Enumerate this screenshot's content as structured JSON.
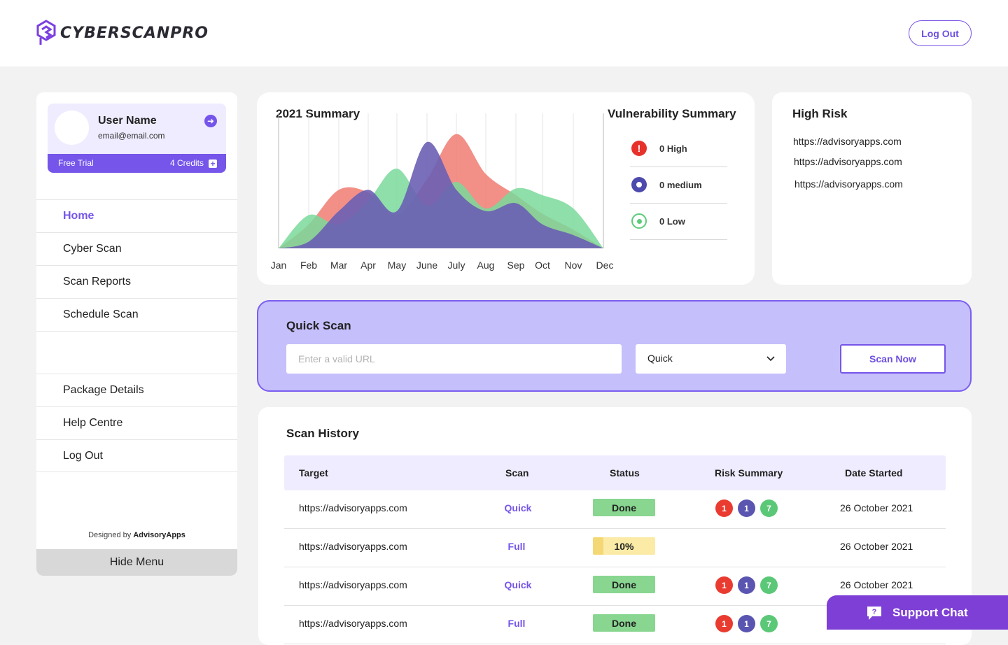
{
  "app": {
    "brand": "CYBERSCANPRO",
    "logout_label": "Log Out"
  },
  "profile": {
    "name": "User Name",
    "email": "email@email.com",
    "plan": "Free Trial",
    "credits": "4 Credits",
    "add_credits_icon": "plus-icon",
    "go_icon": "arrow-right-icon"
  },
  "nav": {
    "items": [
      "Home",
      "Cyber Scan",
      "Scan Reports",
      "Schedule Scan"
    ],
    "items_bottom": [
      "Package Details",
      "Help Centre",
      "Log Out"
    ],
    "active": "Home",
    "designed_prefix": "Designed by",
    "designed_brand": "AdvisoryApps",
    "hide_label": "Hide Menu"
  },
  "summary": {
    "title": "2021 Summary",
    "months": [
      "Jan",
      "Feb",
      "Mar",
      "Apr",
      "May",
      "June",
      "July",
      "Aug",
      "Sep",
      "Oct",
      "Nov",
      "Dec"
    ]
  },
  "chart_data": {
    "type": "area",
    "title": "2021 Summary",
    "x": [
      "Jan",
      "Feb",
      "Mar",
      "Apr",
      "May",
      "June",
      "July",
      "Aug",
      "Sep",
      "Oct",
      "Nov",
      "Dec"
    ],
    "series": [
      {
        "color": "#f07b72",
        "values": [
          0,
          18,
          44,
          42,
          25,
          52,
          86,
          56,
          40,
          26,
          14,
          0
        ]
      },
      {
        "color": "#7ad99a",
        "values": [
          0,
          25,
          18,
          36,
          60,
          32,
          50,
          30,
          45,
          40,
          30,
          0
        ]
      },
      {
        "color": "#6a5fb4",
        "values": [
          0,
          5,
          28,
          44,
          28,
          80,
          44,
          28,
          34,
          18,
          10,
          0
        ]
      }
    ],
    "grid": true,
    "ylim": [
      0,
      100
    ]
  },
  "vulnerability": {
    "title": "Vulnerability Summary",
    "items": [
      {
        "label": "0 High",
        "color": "#e7322c",
        "icon": "alert-icon"
      },
      {
        "label": "0 medium",
        "color": "#4d4aae",
        "icon": "dot-circle-icon"
      },
      {
        "label": "0 Low",
        "color": "#5ccb7a",
        "icon": "ring-icon"
      }
    ]
  },
  "high_risk": {
    "title": "High Risk",
    "links": [
      "https://advisoryapps.com",
      "https://advisoryapps.com",
      "https://advisoryapps.com"
    ]
  },
  "quick_scan": {
    "title": "Quick Scan",
    "url_placeholder": "Enter a valid URL",
    "type_value": "Quick",
    "button": "Scan Now"
  },
  "history": {
    "title": "Scan History",
    "columns": [
      "Target",
      "Scan",
      "Status",
      "Risk Summary",
      "Date Started"
    ],
    "rows": [
      {
        "target": "https://advisoryapps.com",
        "scan": "Quick",
        "status": "Done",
        "risk": [
          "1",
          "1",
          "7"
        ],
        "date": "26 October 2021"
      },
      {
        "target": "https://advisoryapps.com",
        "scan": "Full",
        "status": "10%",
        "progress": 0.1,
        "risk": [],
        "date": "26 October 2021"
      },
      {
        "target": "https://advisoryapps.com",
        "scan": "Quick",
        "status": "Done",
        "risk": [
          "1",
          "1",
          "7"
        ],
        "date": "26 October 2021"
      },
      {
        "target": "https://advisoryapps.com",
        "scan": "Full",
        "status": "Done",
        "risk": [
          "1",
          "1",
          "7"
        ],
        "date": ""
      }
    ]
  },
  "support": {
    "label": "Support Chat",
    "icon": "chat-question-icon"
  }
}
